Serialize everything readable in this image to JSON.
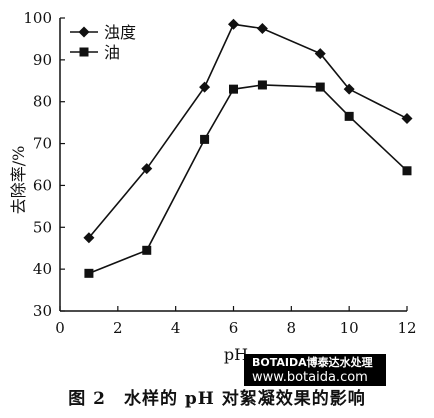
{
  "chart_data": {
    "type": "line",
    "xlabel": "pH",
    "ylabel": "去除率/%",
    "xlim": [
      0,
      12
    ],
    "ylim": [
      30,
      100
    ],
    "xticks": [
      0,
      2,
      4,
      6,
      8,
      10,
      12
    ],
    "yticks": [
      30,
      40,
      50,
      60,
      70,
      80,
      90,
      100
    ],
    "grid": false,
    "legend_position": "top-left",
    "series": [
      {
        "name": "浊度",
        "marker": "diamond",
        "x": [
          1,
          3,
          5,
          6,
          7,
          9,
          10,
          12
        ],
        "y": [
          47.5,
          64,
          83.5,
          98.5,
          97.5,
          91.5,
          83,
          76
        ]
      },
      {
        "name": "油",
        "marker": "square",
        "x": [
          1,
          3,
          5,
          6,
          7,
          9,
          10,
          12
        ],
        "y": [
          39,
          44.5,
          71,
          83,
          84,
          83.5,
          76.5,
          63.5
        ]
      }
    ]
  },
  "caption": "图 2　水样的 pH 对絮凝效果的影响",
  "watermark": {
    "line1": "BOTAIDA博泰达水处理",
    "line2": "www.botaida.com"
  }
}
